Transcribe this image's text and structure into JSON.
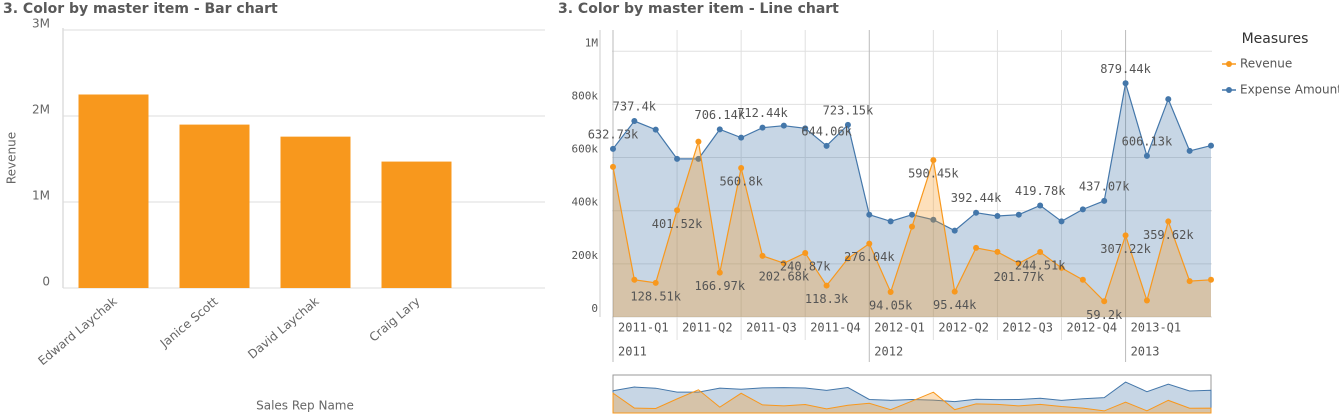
{
  "chart_data": [
    {
      "type": "bar",
      "title": "3. Color by master item - Bar chart",
      "y_label": "Revenue",
      "x_label": "Sales Rep Name",
      "categories": [
        "Edward Laychak",
        "Janice Scott",
        "David Laychak",
        "Craig Lary"
      ],
      "values": [
        2250000,
        1900000,
        1760000,
        1470000
      ],
      "color": "#f8981d",
      "ylim": [
        0,
        3000000
      ],
      "yticks": [
        0,
        {
          "value": 1000000,
          "label": "1M"
        },
        {
          "value": 2000000,
          "label": "2M"
        },
        {
          "value": 3000000,
          "label": "3M"
        }
      ],
      "grid": true
    },
    {
      "type": "line",
      "title": "3. Color by master item - Line chart",
      "legend_title": "Measures",
      "legend": "right",
      "categories": [
        "2011-Q1",
        null,
        null,
        "2011-Q2",
        null,
        null,
        "2011-Q3",
        null,
        null,
        "2011-Q4",
        null,
        null,
        "2012-Q1",
        null,
        null,
        "2012-Q2",
        null,
        null,
        "2012-Q3",
        null,
        null,
        "2012-Q4",
        null,
        null,
        "2013-Q1",
        null,
        null,
        null,
        null
      ],
      "years": [
        "2011",
        null,
        null,
        null,
        null,
        null,
        null,
        null,
        null,
        null,
        null,
        null,
        "2012",
        null,
        null,
        null,
        null,
        null,
        null,
        null,
        null,
        null,
        null,
        null,
        "2013",
        null,
        null,
        null,
        null
      ],
      "ylim": [
        0,
        1080000
      ],
      "yticks": [
        0,
        {
          "value": 200000,
          "label": "200k"
        },
        {
          "value": 400000,
          "label": "400k"
        },
        {
          "value": 600000,
          "label": "600k"
        },
        {
          "value": 800000,
          "label": "800k"
        },
        {
          "value": 1000000,
          "label": "1M"
        }
      ],
      "grid": true,
      "series": [
        {
          "name": "Revenue",
          "color": "#f8981d",
          "values": [
            565000,
            140000,
            128510,
            401520,
            660000,
            166970,
            560800,
            230000,
            202680,
            240870,
            118300,
            220000,
            276040,
            94050,
            340000,
            590450,
            95440,
            260000,
            245000,
            201770,
            244510,
            185000,
            140000,
            59200,
            307220,
            62000,
            359620,
            135000,
            140000
          ],
          "value_labels": [
            null,
            null,
            "128.51k",
            "401.52k",
            null,
            "166.97k",
            "560.8k",
            null,
            "202.68k",
            "240.87k",
            "118.3k",
            null,
            "276.04k",
            "94.05k",
            null,
            "590.45k",
            "95.44k",
            null,
            null,
            "201.77k",
            "244.51k",
            null,
            null,
            "59.2k",
            "307.22k",
            null,
            "359.62k",
            null,
            null
          ]
        },
        {
          "name": "Expense Amount",
          "color": "#4477aa",
          "values": [
            632730,
            737400,
            705000,
            595000,
            595000,
            706140,
            675000,
            712440,
            720000,
            710000,
            644060,
            723150,
            385000,
            360000,
            385000,
            366000,
            325000,
            392440,
            380000,
            385000,
            419780,
            360000,
            405000,
            437070,
            879440,
            606130,
            820000,
            625000,
            645000
          ],
          "value_labels": [
            "632.73k",
            "737.4k",
            null,
            null,
            null,
            "706.14k",
            null,
            "712.44k",
            null,
            null,
            "644.06k",
            "723.15k",
            null,
            null,
            null,
            null,
            null,
            "392.44k",
            null,
            null,
            "419.78k",
            null,
            null,
            "437.07k",
            "879.44k",
            "606.13k",
            null,
            null,
            null
          ]
        }
      ]
    }
  ]
}
